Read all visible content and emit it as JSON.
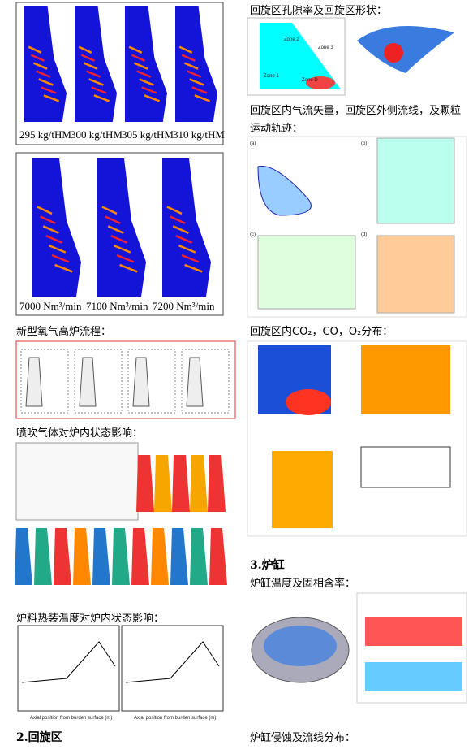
{
  "figure1_captions": [
    "295 kg/tHM",
    "300 kg/tHM",
    "305 kg/tHM",
    "310 kg/tHM"
  ],
  "figure2_captions": [
    "7000 Nm³/min",
    "7100 Nm³/min",
    "7200 Nm³/min"
  ],
  "left_headings": [
    "新型氧气高炉流程：",
    "喷吹气体对炉内状态影响：",
    "炉料热装温度对炉内状态影响："
  ],
  "left_section": "2.回旋区",
  "right_headings": [
    "回旋区孔隙率及回旋区形状：",
    "回旋区内气流矢量，回旋区外侧流线，及颗粒运动轨迹：",
    "回旋区内CO₂，CO，O₂分布：",
    "炉缸温度及固相含率：",
    "炉缸侵蚀及流线分布："
  ],
  "right_section": "3.炉缸",
  "zone_labels": [
    "Zone 1",
    "Zone 2",
    "Zone 3",
    "Zone D"
  ],
  "panel_labels": [
    "(a)",
    "(b)",
    "(c)",
    "(d)"
  ],
  "chart_axis_labels": [
    "Axial position from burden surface (m)",
    "Axial position from burden surface (m)"
  ]
}
